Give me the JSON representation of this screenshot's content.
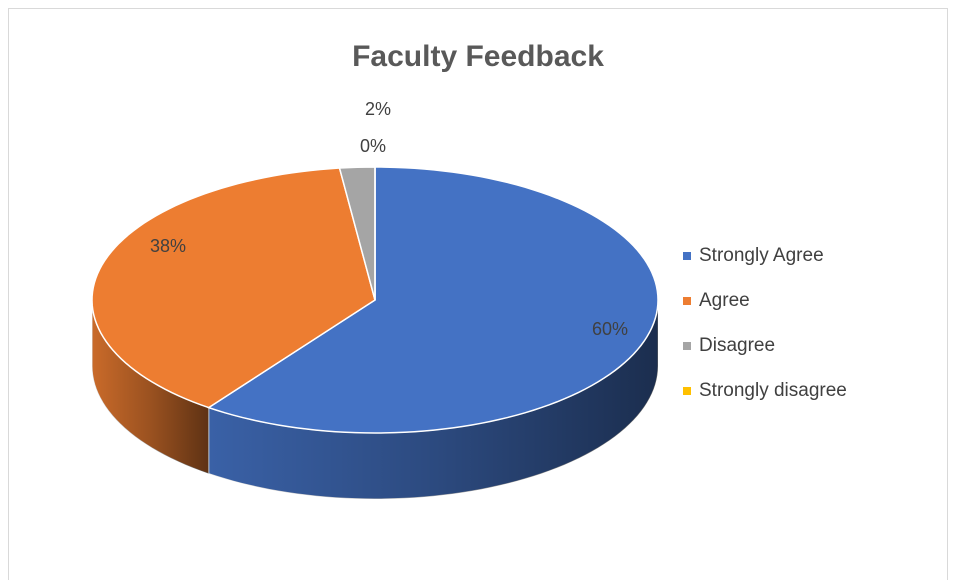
{
  "chart_data": {
    "type": "pie3d",
    "title": "Faculty Feedback",
    "categories": [
      "Strongly Agree",
      "Agree",
      "Disagree",
      "Strongly disagree"
    ],
    "values": [
      60,
      38,
      2,
      0
    ],
    "value_labels": [
      "60%",
      "38%",
      "2%",
      "0%"
    ],
    "colors": [
      "#4472c4",
      "#ed7d31",
      "#a5a5a5",
      "#ffc000"
    ],
    "legend": "right"
  }
}
